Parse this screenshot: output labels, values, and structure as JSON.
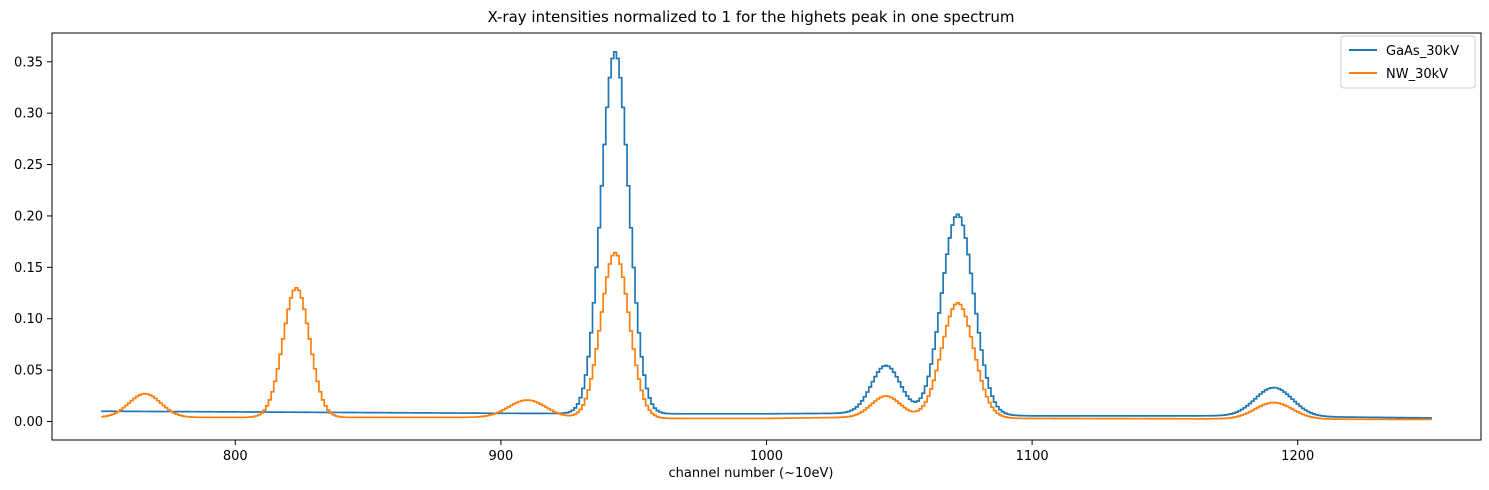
{
  "chart_data": {
    "type": "line",
    "title": "X-ray intensities normalized to 1 for the highets peak in one spectrum",
    "xlabel": "channel number (~10eV)",
    "ylabel": "",
    "xlim": [
      731,
      1269
    ],
    "ylim": [
      -0.018,
      0.378
    ],
    "x_ticks": [
      800,
      900,
      1000,
      1100,
      1200
    ],
    "y_ticks": [
      0.0,
      0.05,
      0.1,
      0.15,
      0.2,
      0.25,
      0.3,
      0.35
    ],
    "x_tick_labels": [
      "800",
      "900",
      "1000",
      "1100",
      "1200"
    ],
    "y_tick_labels": [
      "0.00",
      "0.05",
      "0.10",
      "0.15",
      "0.20",
      "0.25",
      "0.30",
      "0.35"
    ],
    "grid": false,
    "legend_position": "top-right",
    "x_range": [
      750,
      1250
    ],
    "series": [
      {
        "name": "GaAs_30kV",
        "color": "#1f77b4",
        "baseline": [
          [
            750,
            0.01
          ],
          [
            900,
            0.008
          ],
          [
            960,
            0.0075
          ],
          [
            1000,
            0.0075
          ],
          [
            1030,
            0.008
          ],
          [
            1100,
            0.0055
          ],
          [
            1170,
            0.0055
          ],
          [
            1250,
            0.0035
          ]
        ],
        "peaks": [
          {
            "center": 943,
            "height": 0.352,
            "sigma": 5.2
          },
          {
            "center": 1045,
            "height": 0.047,
            "sigma": 5.5
          },
          {
            "center": 1072,
            "height": 0.195,
            "sigma": 6.0
          },
          {
            "center": 1191,
            "height": 0.028,
            "sigma": 7.0
          }
        ]
      },
      {
        "name": "NW_30kV",
        "color": "#ff7f0e",
        "baseline": [
          [
            750,
            0.004
          ],
          [
            800,
            0.004
          ],
          [
            900,
            0.004
          ],
          [
            960,
            0.003
          ],
          [
            1000,
            0.003
          ],
          [
            1030,
            0.004
          ],
          [
            1100,
            0.003
          ],
          [
            1250,
            0.002
          ]
        ],
        "peaks": [
          {
            "center": 766,
            "height": 0.023,
            "sigma": 6.0
          },
          {
            "center": 823,
            "height": 0.126,
            "sigma": 5.0
          },
          {
            "center": 910,
            "height": 0.017,
            "sigma": 7.0
          },
          {
            "center": 943,
            "height": 0.161,
            "sigma": 5.3
          },
          {
            "center": 1045,
            "height": 0.021,
            "sigma": 5.5
          },
          {
            "center": 1072,
            "height": 0.112,
            "sigma": 6.0
          },
          {
            "center": 1191,
            "height": 0.016,
            "sigma": 7.0
          }
        ]
      }
    ]
  }
}
